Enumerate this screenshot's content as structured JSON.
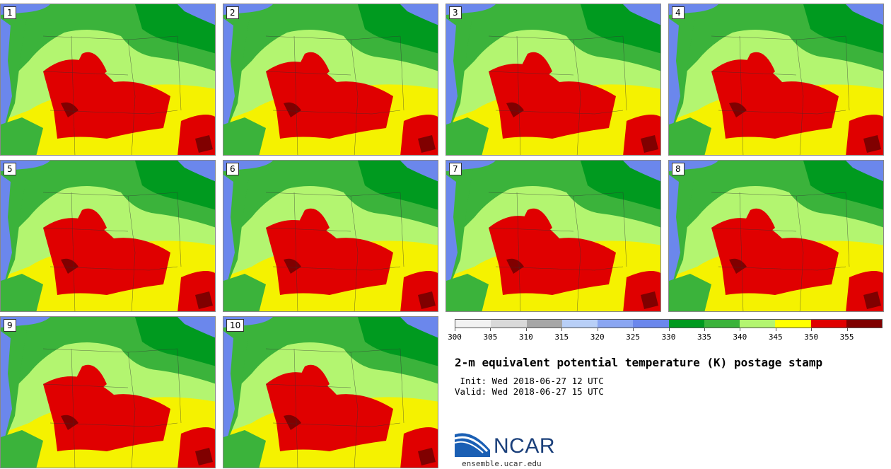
{
  "stamps": [
    {
      "label": "1"
    },
    {
      "label": "2"
    },
    {
      "label": "3"
    },
    {
      "label": "4"
    },
    {
      "label": "5"
    },
    {
      "label": "6"
    },
    {
      "label": "7"
    },
    {
      "label": "8"
    },
    {
      "label": "9"
    },
    {
      "label": "10"
    }
  ],
  "colorbar": {
    "ticks": [
      "300",
      "305",
      "310",
      "315",
      "320",
      "325",
      "330",
      "335",
      "340",
      "345",
      "350",
      "355"
    ],
    "colors": [
      "#f2f2f2",
      "#d9d9d9",
      "#a6a6a6",
      "#b8cff7",
      "#8aa6f2",
      "#6b87ec",
      "#009a1f",
      "#3bb33b",
      "#b3f570",
      "#ffff00",
      "#e00000",
      "#800000"
    ]
  },
  "title": "2-m equivalent potential temperature (K) postage stamp",
  "init": " Init: Wed 2018-06-27 12 UTC",
  "valid": "Valid: Wed 2018-06-27 15 UTC",
  "logo": {
    "text": "NCAR",
    "url": "ensemble.ucar.edu"
  }
}
